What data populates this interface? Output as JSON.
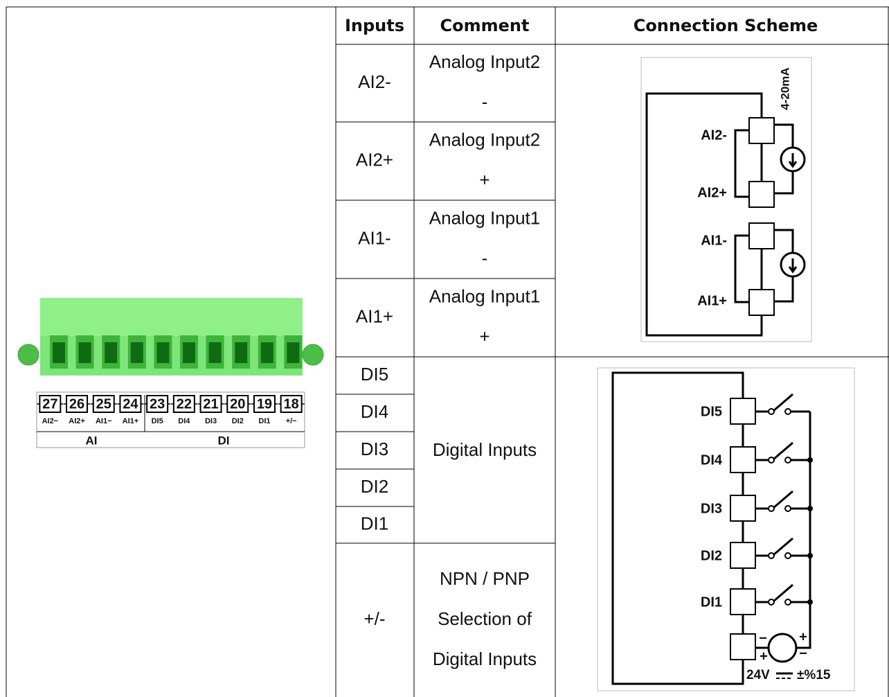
{
  "table": {
    "headers": [
      "Inputs",
      "Comment",
      "Connection Scheme"
    ],
    "rows": [
      {
        "input": "AI2-",
        "comment": [
          "Analog Input2",
          "-"
        ]
      },
      {
        "input": "AI2+",
        "comment": [
          "Analog Input2",
          "+"
        ]
      },
      {
        "input": "AI1-",
        "comment": [
          "Analog Input1",
          "-"
        ]
      },
      {
        "input": "AI1+",
        "comment": [
          "Analog Input1",
          "+"
        ]
      },
      {
        "input": "DI5"
      },
      {
        "input": "DI4"
      },
      {
        "input": "DI3"
      },
      {
        "input": "DI2"
      },
      {
        "input": "DI1"
      },
      {
        "input": "+/-",
        "comment": [
          "NPN / PNP",
          "Selection of",
          "Digital Inputs"
        ]
      }
    ],
    "digital_comment": "Digital Inputs"
  },
  "connector": {
    "numbers": [
      "27",
      "26",
      "25",
      "24",
      "23",
      "22",
      "21",
      "20",
      "19",
      "18"
    ],
    "labels": [
      "AI2−",
      "AI2+",
      "AI1−",
      "AI1+",
      "DI5",
      "DI4",
      "DI3",
      "DI2",
      "DI1",
      "+/−"
    ],
    "groups": [
      "AI",
      "DI"
    ]
  },
  "analog_scheme": {
    "current_label": "4-20mA",
    "terminals": [
      "AI2-",
      "AI2+",
      "AI1-",
      "AI1+"
    ]
  },
  "digital_scheme": {
    "terminals": [
      "DI5",
      "DI4",
      "DI3",
      "DI2",
      "DI1"
    ],
    "supply": "24V",
    "tolerance": "±%15",
    "polarity": [
      "−",
      "+",
      "+",
      "−"
    ]
  }
}
